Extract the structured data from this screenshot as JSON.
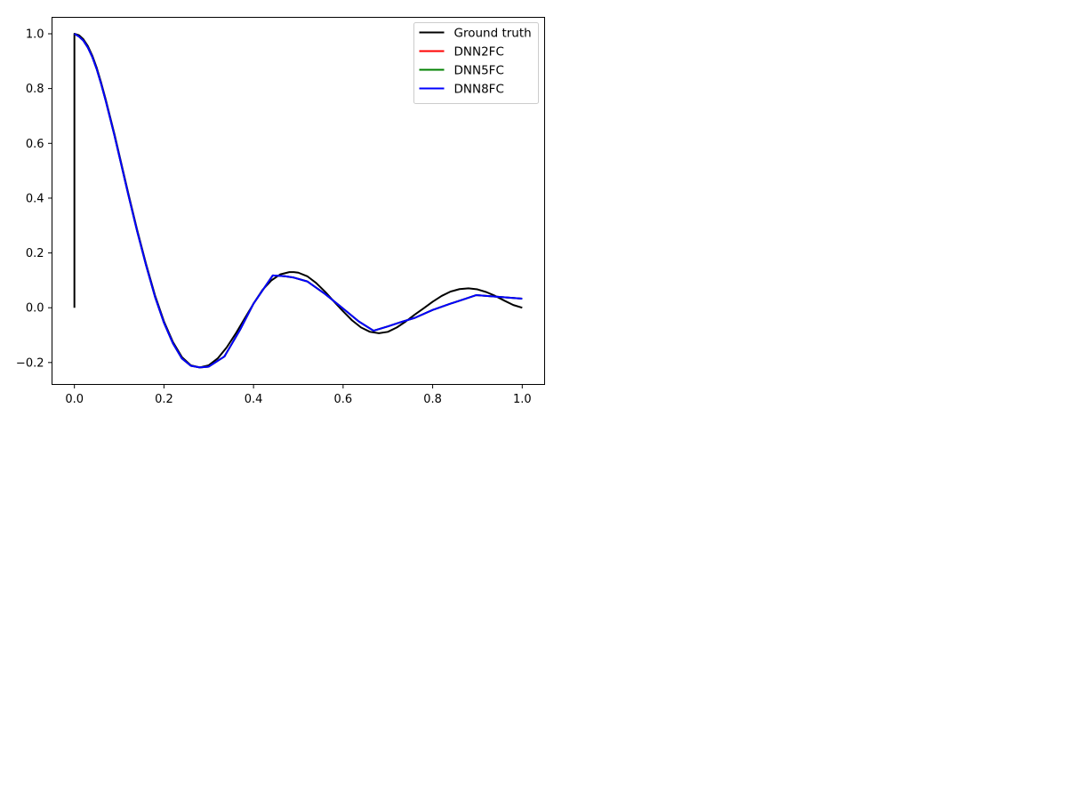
{
  "chart_data": {
    "type": "line",
    "title": "",
    "xlabel": "",
    "ylabel": "",
    "xlim": [
      -0.05,
      1.05
    ],
    "ylim": [
      -0.28,
      1.06
    ],
    "xticks": [
      0.0,
      0.2,
      0.4,
      0.6,
      0.8,
      1.0
    ],
    "xtick_labels": [
      "0.0",
      "0.2",
      "0.4",
      "0.6",
      "0.8",
      "1.0"
    ],
    "yticks": [
      -0.2,
      0.0,
      0.2,
      0.4,
      0.6,
      0.8,
      1.0
    ],
    "ytick_labels": [
      "−0.2",
      "0.0",
      "0.2",
      "0.4",
      "0.6",
      "0.8",
      "1.0"
    ],
    "grid": false,
    "legend_position": "top-right",
    "series": [
      {
        "name": "Ground truth",
        "color": "#000000",
        "x": [
          0.0,
          0.0,
          0.01,
          0.02,
          0.03,
          0.04,
          0.05,
          0.06,
          0.07,
          0.08,
          0.09,
          0.1,
          0.12,
          0.14,
          0.16,
          0.18,
          0.2,
          0.22,
          0.24,
          0.26,
          0.28,
          0.3,
          0.32,
          0.34,
          0.36,
          0.38,
          0.4,
          0.42,
          0.44,
          0.46,
          0.48,
          0.49,
          0.5,
          0.52,
          0.54,
          0.56,
          0.58,
          0.6,
          0.62,
          0.64,
          0.66,
          0.68,
          0.7,
          0.72,
          0.74,
          0.76,
          0.78,
          0.8,
          0.82,
          0.84,
          0.86,
          0.88,
          0.9,
          0.92,
          0.94,
          0.96,
          0.98,
          1.0
        ],
        "y": [
          0.0,
          1.0,
          0.995,
          0.98,
          0.955,
          0.92,
          0.875,
          0.82,
          0.76,
          0.695,
          0.63,
          0.56,
          0.42,
          0.285,
          0.16,
          0.045,
          -0.05,
          -0.125,
          -0.18,
          -0.21,
          -0.218,
          -0.21,
          -0.185,
          -0.145,
          -0.095,
          -0.04,
          0.015,
          0.065,
          0.1,
          0.122,
          0.13,
          0.13,
          0.128,
          0.115,
          0.09,
          0.058,
          0.022,
          -0.013,
          -0.046,
          -0.072,
          -0.088,
          -0.093,
          -0.088,
          -0.072,
          -0.05,
          -0.025,
          -0.002,
          0.022,
          0.043,
          0.059,
          0.068,
          0.071,
          0.067,
          0.057,
          0.043,
          0.026,
          0.01,
          0.0
        ]
      },
      {
        "name": "DNN2FC",
        "color": "#ff0000",
        "x": [
          0.0,
          0.01,
          0.02,
          0.03,
          0.04,
          0.05,
          0.06,
          0.07,
          0.08,
          0.09,
          0.1,
          0.12,
          0.14,
          0.16,
          0.18,
          0.2,
          0.22,
          0.24,
          0.26,
          0.28,
          0.3,
          0.335,
          0.37,
          0.4,
          0.443,
          0.47,
          0.49,
          0.52,
          0.56,
          0.6,
          0.635,
          0.668,
          0.7,
          0.73,
          0.76,
          0.8,
          0.84,
          0.872,
          0.897,
          1.0
        ],
        "y": [
          1.0,
          0.99,
          0.975,
          0.95,
          0.915,
          0.87,
          0.815,
          0.755,
          0.69,
          0.625,
          0.555,
          0.415,
          0.28,
          0.155,
          0.04,
          -0.055,
          -0.13,
          -0.185,
          -0.212,
          -0.218,
          -0.215,
          -0.178,
          -0.08,
          0.015,
          0.118,
          0.115,
          0.11,
          0.096,
          0.05,
          -0.003,
          -0.05,
          -0.084,
          -0.068,
          -0.052,
          -0.037,
          -0.008,
          0.015,
          0.032,
          0.046,
          0.033
        ]
      },
      {
        "name": "DNN5FC",
        "color": "#008000",
        "x": [
          0.0,
          0.01,
          0.02,
          0.03,
          0.04,
          0.05,
          0.06,
          0.07,
          0.08,
          0.09,
          0.1,
          0.12,
          0.14,
          0.16,
          0.18,
          0.2,
          0.22,
          0.24,
          0.26,
          0.28,
          0.3,
          0.335,
          0.37,
          0.4,
          0.443,
          0.47,
          0.49,
          0.52,
          0.56,
          0.6,
          0.635,
          0.668,
          0.7,
          0.73,
          0.76,
          0.8,
          0.84,
          0.872,
          0.897,
          1.0
        ],
        "y": [
          1.0,
          0.99,
          0.975,
          0.95,
          0.915,
          0.87,
          0.815,
          0.755,
          0.69,
          0.625,
          0.555,
          0.415,
          0.28,
          0.155,
          0.04,
          -0.055,
          -0.13,
          -0.185,
          -0.212,
          -0.218,
          -0.215,
          -0.178,
          -0.08,
          0.015,
          0.118,
          0.115,
          0.11,
          0.096,
          0.05,
          -0.003,
          -0.05,
          -0.084,
          -0.068,
          -0.052,
          -0.037,
          -0.008,
          0.015,
          0.032,
          0.046,
          0.033
        ]
      },
      {
        "name": "DNN8FC",
        "color": "#0000ff",
        "x": [
          0.0,
          0.01,
          0.02,
          0.03,
          0.04,
          0.05,
          0.06,
          0.07,
          0.08,
          0.09,
          0.1,
          0.12,
          0.14,
          0.16,
          0.18,
          0.2,
          0.22,
          0.24,
          0.26,
          0.28,
          0.3,
          0.335,
          0.37,
          0.4,
          0.443,
          0.47,
          0.49,
          0.52,
          0.56,
          0.6,
          0.635,
          0.668,
          0.7,
          0.73,
          0.76,
          0.8,
          0.84,
          0.872,
          0.897,
          1.0
        ],
        "y": [
          1.0,
          0.99,
          0.975,
          0.95,
          0.915,
          0.87,
          0.815,
          0.755,
          0.69,
          0.625,
          0.555,
          0.415,
          0.28,
          0.155,
          0.04,
          -0.055,
          -0.13,
          -0.185,
          -0.212,
          -0.218,
          -0.215,
          -0.178,
          -0.08,
          0.015,
          0.118,
          0.115,
          0.11,
          0.096,
          0.05,
          -0.003,
          -0.05,
          -0.084,
          -0.068,
          -0.052,
          -0.037,
          -0.008,
          0.015,
          0.032,
          0.046,
          0.033
        ]
      }
    ]
  }
}
